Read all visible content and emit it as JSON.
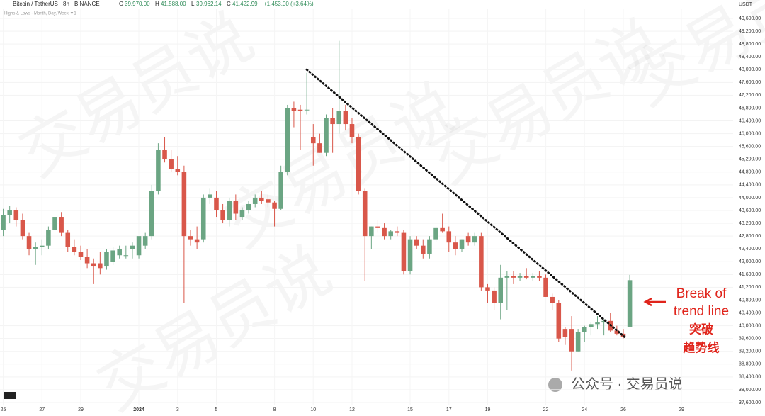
{
  "header": {
    "symbol": "Bitcoin / TetherUS · 8h · BINANCE",
    "o_label": "O",
    "o": "39,970.00",
    "h_label": "H",
    "h": "41,588.00",
    "l_label": "L",
    "l": "39,962.14",
    "c_label": "C",
    "c": "41,422.99",
    "change": "+1,453.00 (+3.64%)",
    "indicator": "Highs & Lows - Month, Day, Week ▼1"
  },
  "watermark": "交易员说",
  "footer": "公众号 · 交易员说",
  "chart_data": {
    "type": "candlestick",
    "unit": "USDT",
    "up_color": "#6ba583",
    "down_color": "#d9574a",
    "grid": true,
    "open": [
      43000,
      43450,
      43600,
      43300,
      42800,
      42400,
      42450,
      42500,
      43000,
      43400,
      42900,
      42450,
      42300,
      42150,
      41950,
      41950,
      41850,
      42000,
      42200,
      42200,
      42400,
      42200,
      42500,
      42800,
      44200,
      45500,
      45200,
      44900,
      44800,
      42800,
      42700,
      42700,
      44000,
      44000,
      43600,
      43300,
      43900,
      43400,
      43600,
      43800,
      44000,
      43950,
      43850,
      43650,
      44800,
      46800,
      46750,
      46750,
      45900,
      45700,
      45400,
      46500,
      46300,
      46700,
      46300,
      45900,
      44200,
      42800,
      43100,
      43050,
      42800,
      42950,
      42900,
      41700,
      42700,
      42500,
      42250,
      42700,
      43050,
      42950,
      42600,
      42400,
      42800,
      42600,
      42800,
      41200,
      41100,
      40700,
      41500,
      41550,
      41500,
      41550,
      41500,
      41550,
      41500,
      40900,
      40700,
      39900,
      39900,
      39200,
      39800,
      39950,
      40050,
      40100,
      40150,
      39850,
      39750,
      39970
    ],
    "high": [
      43650,
      43750,
      43700,
      43500,
      42900,
      42600,
      42700,
      43100,
      43500,
      43550,
      43000,
      42700,
      42500,
      42400,
      42100,
      42300,
      42400,
      42450,
      42500,
      42500,
      42600,
      42700,
      42900,
      44400,
      45700,
      45900,
      45500,
      45300,
      45000,
      43000,
      43100,
      44100,
      44300,
      44200,
      43800,
      44000,
      44100,
      43700,
      43900,
      44100,
      44200,
      44100,
      43900,
      45000,
      46900,
      47000,
      46900,
      47900,
      46300,
      46000,
      46600,
      46800,
      48900,
      46900,
      46500,
      46000,
      44300,
      43100,
      43300,
      43200,
      43000,
      43100,
      43000,
      42800,
      42800,
      42700,
      42800,
      43100,
      43500,
      43100,
      42800,
      42700,
      42900,
      42900,
      42900,
      41300,
      41200,
      41900,
      41700,
      41700,
      41650,
      41800,
      41650,
      41700,
      41600,
      41000,
      40800,
      39950,
      40300,
      39900,
      40000,
      40100,
      40300,
      40200,
      40400,
      40000,
      39900,
      41588
    ],
    "low": [
      42800,
      43200,
      43100,
      42700,
      42200,
      41900,
      42200,
      42400,
      42900,
      42800,
      42300,
      42200,
      42050,
      41800,
      41300,
      41600,
      41750,
      41900,
      42100,
      42100,
      42100,
      42100,
      42400,
      42700,
      44100,
      45100,
      44800,
      44700,
      40700,
      42500,
      42400,
      42600,
      43800,
      43400,
      43200,
      43100,
      43300,
      43300,
      43500,
      43700,
      43800,
      43700,
      43100,
      43600,
      44700,
      46200,
      45500,
      46600,
      45000,
      45400,
      45300,
      45400,
      46000,
      46100,
      45700,
      44100,
      41400,
      42400,
      42900,
      42700,
      42700,
      42800,
      41600,
      41600,
      42400,
      42100,
      42100,
      42600,
      42900,
      42300,
      42200,
      42300,
      42500,
      42500,
      41100,
      40700,
      40500,
      40200,
      40500,
      41300,
      41400,
      41450,
      41400,
      41400,
      40900,
      40500,
      39500,
      39400,
      38600,
      39200,
      39500,
      39700,
      39900,
      39700,
      39800,
      39700,
      39600,
      39962
    ],
    "close": [
      43450,
      43600,
      43300,
      42800,
      42400,
      42450,
      42500,
      43000,
      43400,
      42900,
      42450,
      42300,
      42150,
      41950,
      41850,
      41800,
      42300,
      42350,
      42400,
      42200,
      42500,
      42800,
      42800,
      44200,
      45500,
      45200,
      44900,
      44800,
      42800,
      42700,
      42600,
      44000,
      44100,
      43600,
      43300,
      43900,
      43500,
      43600,
      43800,
      44000,
      43900,
      43850,
      43650,
      44800,
      46800,
      46700,
      46700,
      46750,
      45700,
      45400,
      46500,
      46300,
      46700,
      46300,
      45900,
      44200,
      42800,
      43100,
      43050,
      42800,
      42950,
      42900,
      41700,
      42700,
      42500,
      42250,
      42700,
      43050,
      42950,
      42600,
      42400,
      42700,
      42600,
      42800,
      41200,
      41100,
      40700,
      41500,
      41550,
      41500,
      41550,
      41500,
      41550,
      41500,
      40900,
      40700,
      39600,
      39650,
      39200,
      39800,
      39950,
      40050,
      40100,
      40150,
      39850,
      39750,
      39650,
      41423
    ],
    "xlim": [
      -0.5,
      113
    ],
    "xticks": [
      {
        "value": 0,
        "label": "25"
      },
      {
        "value": 6,
        "label": "27"
      },
      {
        "value": 12,
        "label": "29"
      },
      {
        "value": 21,
        "label": "2024"
      },
      {
        "value": 27,
        "label": "3"
      },
      {
        "value": 33,
        "label": "5"
      },
      {
        "value": 42,
        "label": "8"
      },
      {
        "value": 48,
        "label": "10"
      },
      {
        "value": 54,
        "label": "12"
      },
      {
        "value": 63,
        "label": "15"
      },
      {
        "value": 69,
        "label": "17"
      },
      {
        "value": 75,
        "label": "19"
      },
      {
        "value": 84,
        "label": "22"
      },
      {
        "value": 90,
        "label": "24"
      },
      {
        "value": 96,
        "label": "26"
      },
      {
        "value": 105,
        "label": "29"
      }
    ],
    "ylim": [
      37200,
      49900
    ],
    "yticks": [
      {
        "value": 37600,
        "label": "37,600.00"
      },
      {
        "value": 38000,
        "label": "38,000.00"
      },
      {
        "value": 38400,
        "label": "38,400.00"
      },
      {
        "value": 38800,
        "label": "38,800.00"
      },
      {
        "value": 39200,
        "label": "39,200.00"
      },
      {
        "value": 39600,
        "label": "39,600.00"
      },
      {
        "value": 40000,
        "label": "40,000.00"
      },
      {
        "value": 40400,
        "label": "40,400.00"
      },
      {
        "value": 40800,
        "label": "40,800.00"
      },
      {
        "value": 41200,
        "label": "41,200.00"
      },
      {
        "value": 41600,
        "label": "41,600.00"
      },
      {
        "value": 42000,
        "label": "42,000.00"
      },
      {
        "value": 42400,
        "label": "42,400.00"
      },
      {
        "value": 42800,
        "label": "42,800.00"
      },
      {
        "value": 43200,
        "label": "43,200.00"
      },
      {
        "value": 43600,
        "label": "43,600.00"
      },
      {
        "value": 44000,
        "label": "44,000.00"
      },
      {
        "value": 44400,
        "label": "44,400.00"
      },
      {
        "value": 44800,
        "label": "44,800.00"
      },
      {
        "value": 45200,
        "label": "45,200.00"
      },
      {
        "value": 45600,
        "label": "45,600.00"
      },
      {
        "value": 46000,
        "label": "46,000.00"
      },
      {
        "value": 46400,
        "label": "46,400.00"
      },
      {
        "value": 46800,
        "label": "46,800.00"
      },
      {
        "value": 47200,
        "label": "47,200.00"
      },
      {
        "value": 47600,
        "label": "47,600.00"
      },
      {
        "value": 48000,
        "label": "48,000.00"
      },
      {
        "value": 48400,
        "label": "48,400.00"
      },
      {
        "value": 48800,
        "label": "48,800.00"
      },
      {
        "value": 49200,
        "label": "49,200.00"
      },
      {
        "value": 49600,
        "label": "49,600.00"
      }
    ],
    "trend_line": {
      "x": [
        47,
        96.5
      ],
      "y": [
        48000,
        39600
      ],
      "color": "#111"
    },
    "annotation": {
      "lines": [
        "Break of",
        "trend line",
        "突破",
        "趋势线"
      ],
      "color": "#e0241b"
    }
  }
}
